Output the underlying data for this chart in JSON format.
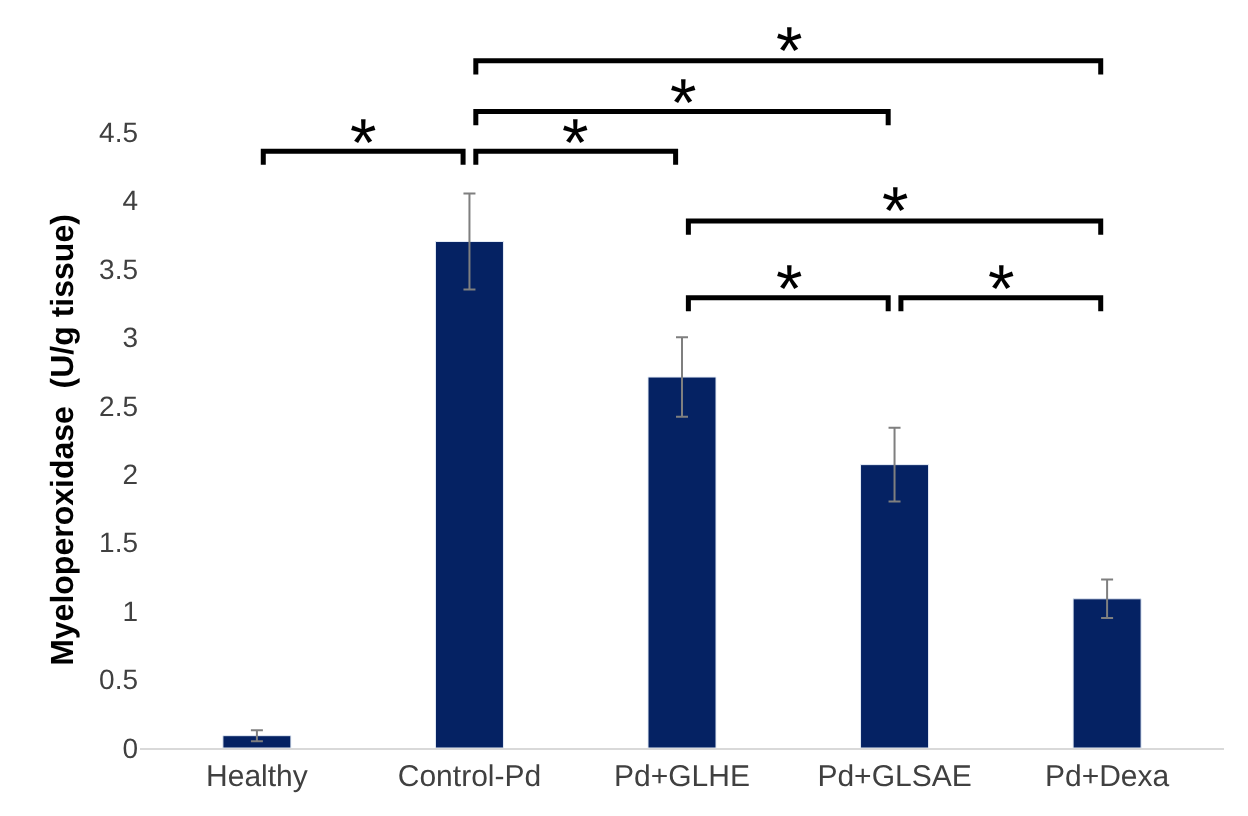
{
  "chart_data": {
    "type": "bar",
    "ylabel": "Myeloperoxidase  (U/g tissue)",
    "categories": [
      "Healthy",
      "Control-Pd",
      "Pd+GLHE",
      "Pd+GLSAE",
      "Pd+Dexa"
    ],
    "values": [
      0.09,
      3.7,
      2.71,
      2.07,
      1.09
    ],
    "errors": [
      0.04,
      0.35,
      0.29,
      0.27,
      0.14
    ],
    "color": "#052263",
    "ylim": [
      0,
      4.5
    ],
    "yticks": [
      0,
      0.5,
      1,
      1.5,
      2,
      2.5,
      3,
      3.5,
      4,
      4.5
    ],
    "legend": false,
    "annotations": [
      "*",
      "*",
      "*",
      "*",
      "*",
      "*",
      "*"
    ]
  }
}
